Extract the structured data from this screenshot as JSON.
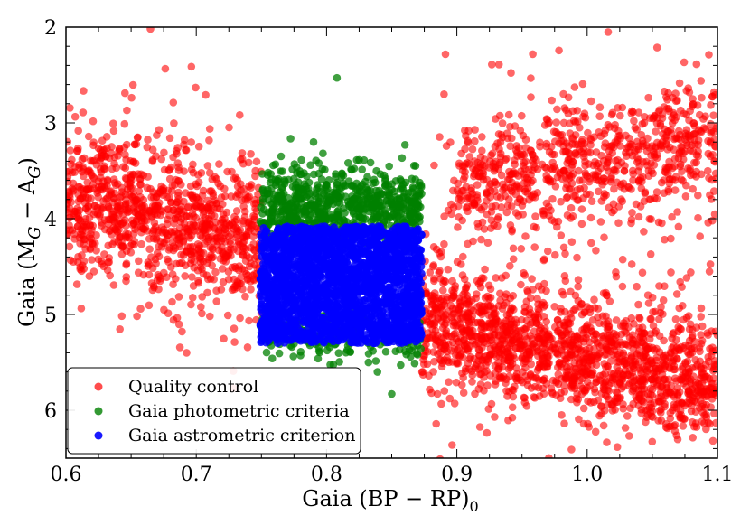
{
  "chart_data": {
    "type": "scatter",
    "title": "",
    "xlabel": "Gaia (BP − RP)",
    "xlabel_sub": "0",
    "ylabel_prefix": "Gaia (M",
    "ylabel_sub1": "G",
    "ylabel_mid": " − A",
    "ylabel_sub2": "G",
    "ylabel_suffix": ")",
    "xlim": [
      0.6,
      1.1
    ],
    "ylim": [
      6.5,
      2.0
    ],
    "y_inverted": true,
    "xticks": [
      0.6,
      0.7,
      0.8,
      0.9,
      1.0,
      1.1
    ],
    "xtick_labels": [
      "0.6",
      "0.7",
      "0.8",
      "0.9",
      "1.0",
      "1.1"
    ],
    "yticks": [
      2,
      3,
      4,
      5,
      6
    ],
    "ytick_labels": [
      "2",
      "3",
      "4",
      "5",
      "6"
    ],
    "legend_position": "lower-left",
    "series": [
      {
        "name": "Quality control",
        "color": "#ff0000",
        "opacity": 0.6,
        "clouds": [
          {
            "x_range": [
              0.6,
              0.75
            ],
            "y_center": 4.1,
            "y_slope": 3.0,
            "x_ref": 0.7,
            "y_spread": 0.35,
            "count": 900
          },
          {
            "x_range": [
              0.6,
              0.75
            ],
            "y_center": 3.9,
            "y_slope": 2.0,
            "x_ref": 0.67,
            "y_spread": 0.7,
            "count": 150
          },
          {
            "x_range": [
              0.873,
              1.1
            ],
            "y_center": 5.25,
            "y_slope": 3.0,
            "x_ref": 0.93,
            "y_spread": 0.3,
            "count": 1500
          },
          {
            "x_range": [
              0.9,
              1.1
            ],
            "y_center": 3.4,
            "y_slope": -2.2,
            "x_ref": 1.0,
            "y_spread": 0.3,
            "count": 700
          },
          {
            "x_range": [
              0.873,
              1.1
            ],
            "y_center": 4.2,
            "y_slope": 0.0,
            "x_ref": 0.95,
            "y_spread": 1.1,
            "count": 260
          }
        ]
      },
      {
        "name": "Gaia photometric criteria",
        "color": "#008000",
        "opacity": 0.75,
        "clouds": [
          {
            "x_range": [
              0.749,
              0.873
            ],
            "y_center": 3.85,
            "y_slope": 0.0,
            "x_ref": 0.81,
            "y_spread": 0.2,
            "count": 700
          },
          {
            "x_range": [
              0.749,
              0.873
            ],
            "y_center": 5.25,
            "y_slope": 0.5,
            "x_ref": 0.81,
            "y_spread": 0.12,
            "count": 160
          }
        ],
        "outliers": [
          [
            0.808,
            2.53
          ],
          [
            0.85,
            5.83
          ],
          [
            0.79,
            3.2
          ]
        ]
      },
      {
        "name": "Gaia astrometric criterion",
        "color": "#0000ff",
        "opacity": 0.85,
        "box": {
          "x_range": [
            0.749,
            0.873
          ],
          "y_range": [
            4.08,
            5.3
          ],
          "count": 2200
        }
      }
    ]
  }
}
